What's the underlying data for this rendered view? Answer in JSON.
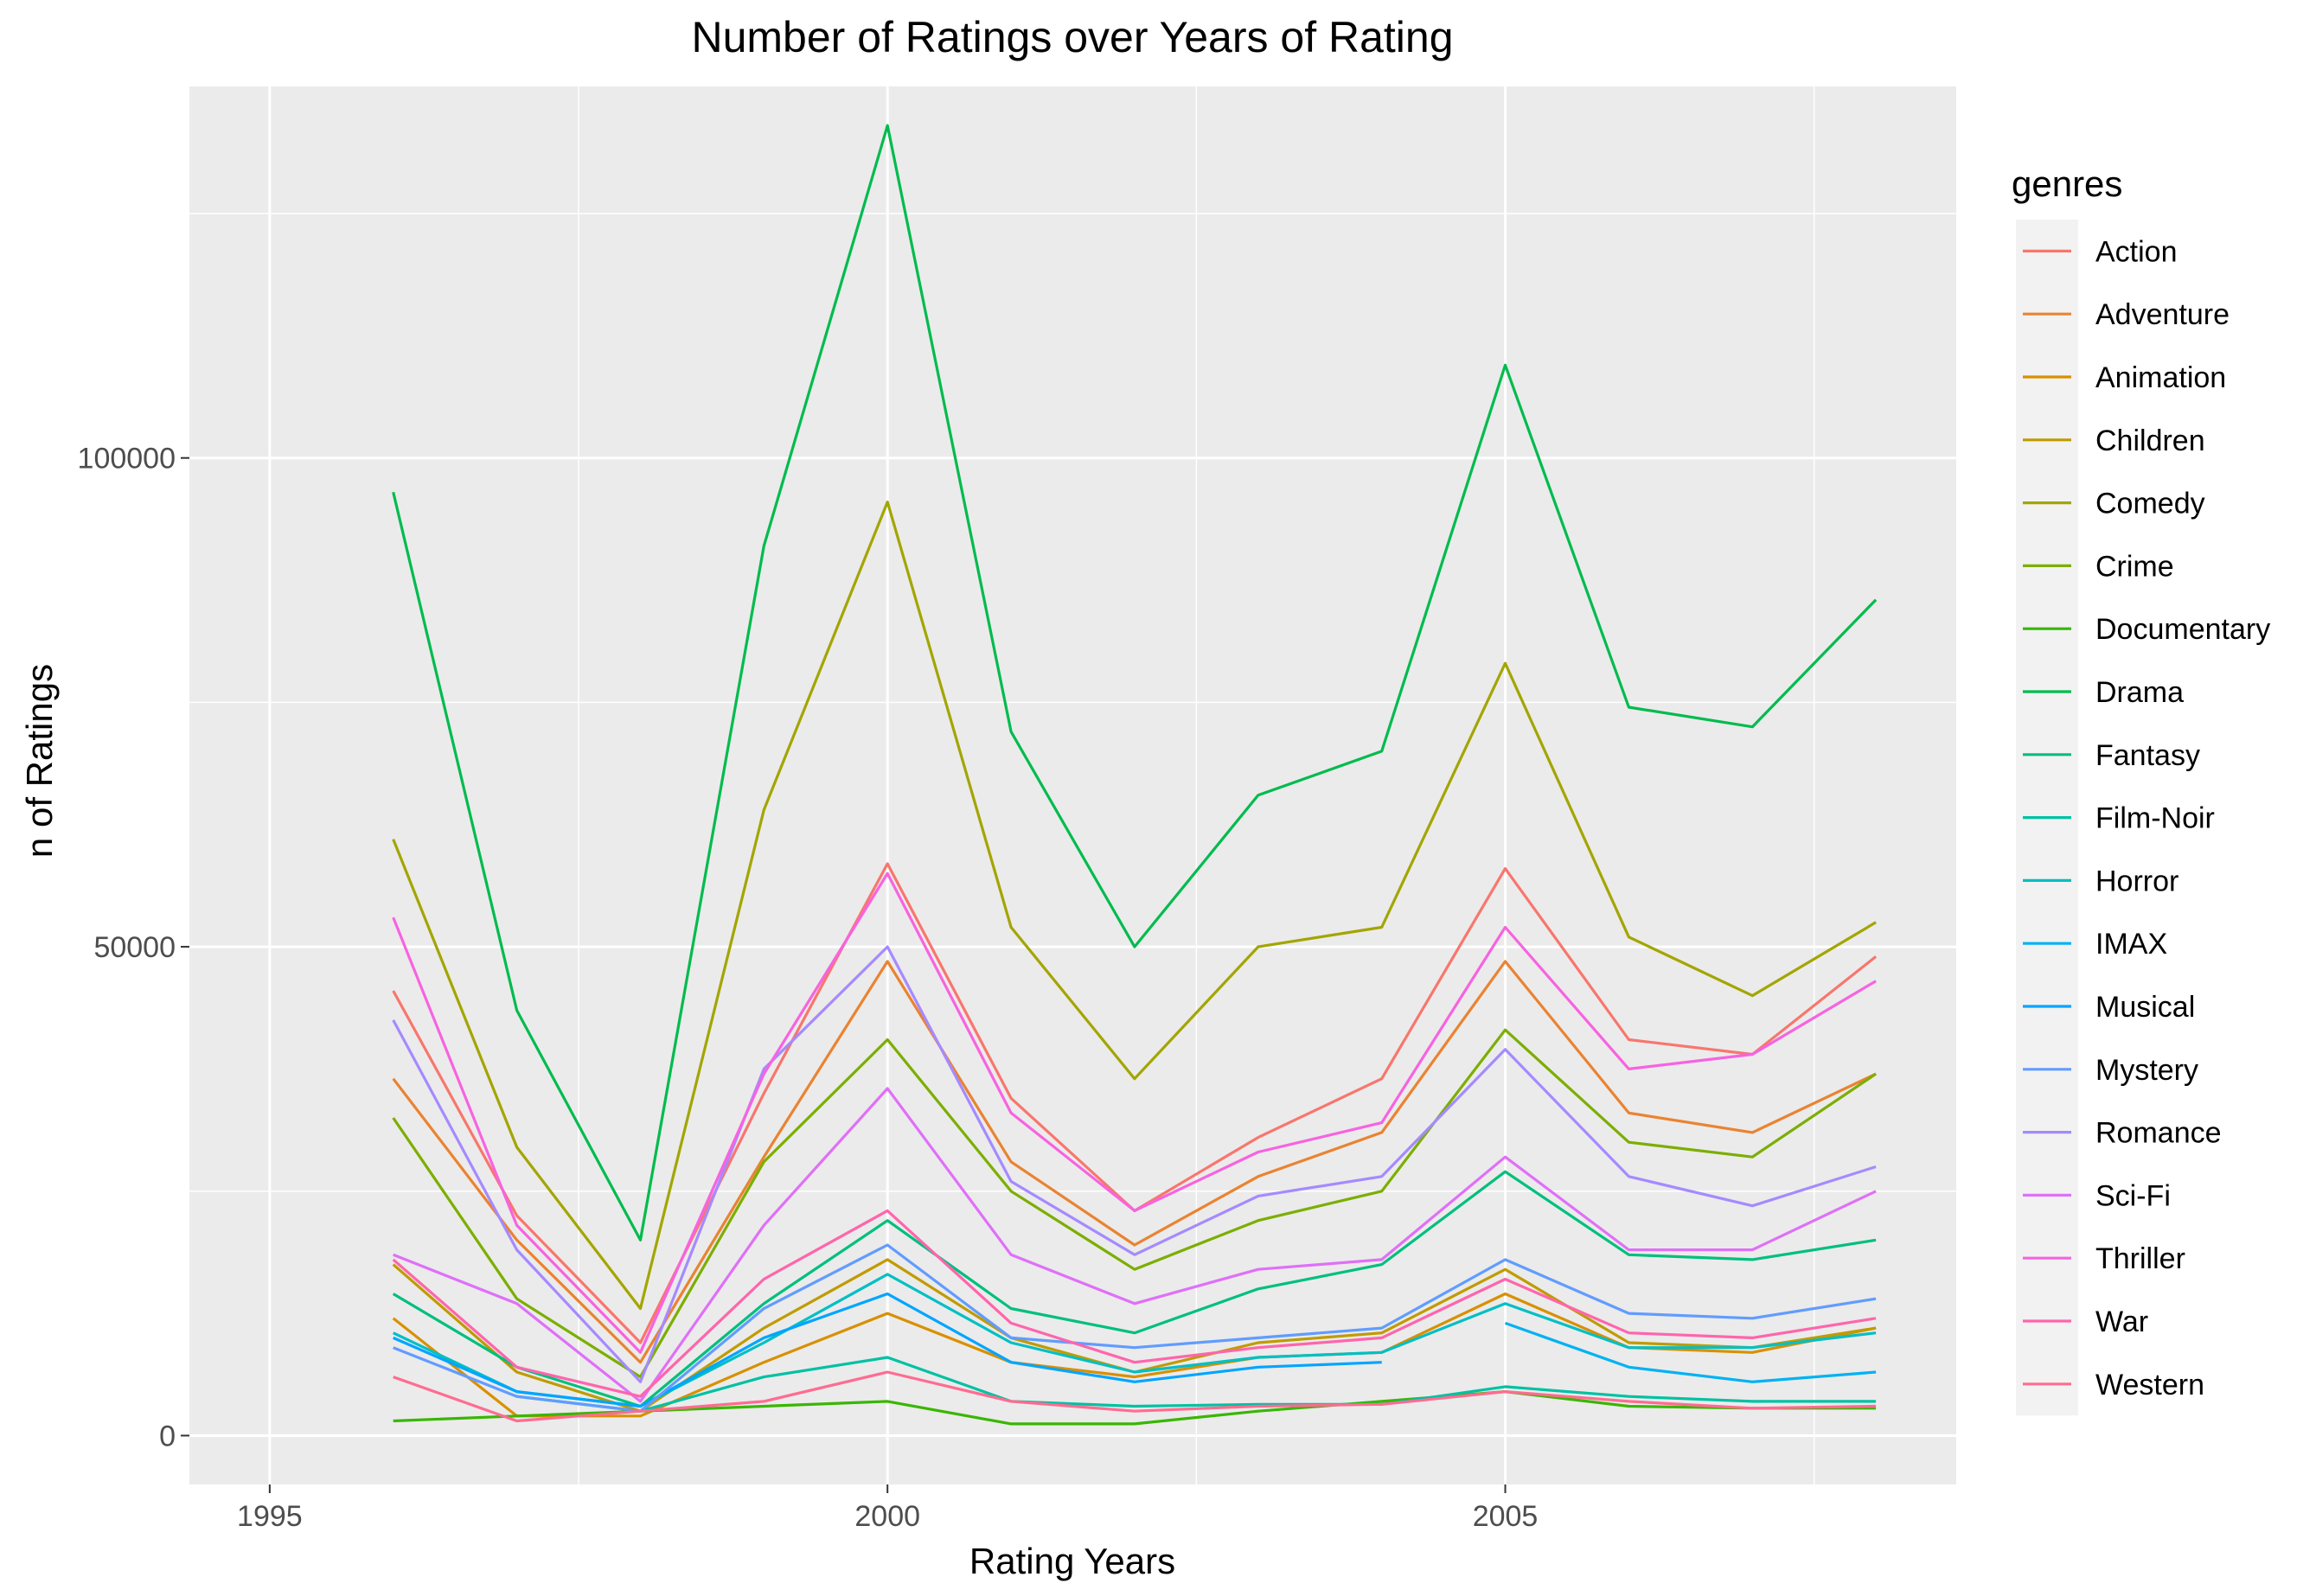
{
  "chart_data": {
    "type": "line",
    "title": "Number of Ratings over Years of Rating",
    "xlabel": "Rating Years",
    "ylabel": "n of Ratings",
    "xlim": [
      1994.35,
      2008.65
    ],
    "ylim": [
      -5000,
      138000
    ],
    "x_ticks": [
      1995,
      2000,
      2005
    ],
    "x_tick_labels": [
      "1995",
      "2000",
      "2005"
    ],
    "x_minor_ticks": [
      1997.5,
      2002.5,
      2007.5
    ],
    "y_ticks": [
      0,
      50000,
      100000
    ],
    "y_tick_labels": [
      "0",
      "50000",
      "100000"
    ],
    "y_minor_ticks": [
      25000,
      75000,
      125000
    ],
    "grid": true,
    "panel_background": "#ebebeb",
    "legend": {
      "title": "genres",
      "position": "right"
    },
    "x": [
      1996,
      1997,
      1998,
      1999,
      2000,
      2001,
      2002,
      2003,
      2004,
      2005,
      2006,
      2007,
      2008
    ],
    "series": [
      {
        "name": "Action",
        "color": "#F8766D",
        "values": [
          45500,
          22500,
          9500,
          35000,
          58500,
          34500,
          23000,
          30500,
          36500,
          58000,
          40500,
          39000,
          49000
        ]
      },
      {
        "name": "Adventure",
        "color": "#EA8331",
        "values": [
          36500,
          20000,
          7500,
          28500,
          48500,
          28000,
          19500,
          26500,
          31000,
          48500,
          33000,
          31000,
          37000
        ]
      },
      {
        "name": "Animation",
        "color": "#D89000",
        "values": [
          12000,
          2000,
          2000,
          7500,
          12500,
          7500,
          6000,
          8000,
          8500,
          14500,
          9000,
          8500,
          11000
        ]
      },
      {
        "name": "Children",
        "color": "#C09B00",
        "values": [
          17500,
          6500,
          2500,
          11000,
          18000,
          10000,
          6500,
          9500,
          10500,
          17000,
          9500,
          9000,
          11000
        ]
      },
      {
        "name": "Comedy",
        "color": "#A3A500",
        "values": [
          61000,
          29500,
          13000,
          64000,
          95500,
          52000,
          36500,
          50000,
          52000,
          79000,
          51000,
          45000,
          52500
        ]
      },
      {
        "name": "Crime",
        "color": "#7CAE00",
        "values": [
          32500,
          14000,
          6000,
          28000,
          40500,
          25000,
          17000,
          22000,
          25000,
          41500,
          30000,
          28500,
          37000
        ]
      },
      {
        "name": "Documentary",
        "color": "#39B600",
        "values": [
          1500,
          2000,
          2500,
          3000,
          3500,
          1200,
          1200,
          2500,
          3500,
          4500,
          3000,
          2800,
          2800
        ]
      },
      {
        "name": "Drama",
        "color": "#00BB4E",
        "values": [
          96500,
          43500,
          20000,
          91000,
          134000,
          72000,
          50000,
          65500,
          70000,
          109500,
          74500,
          72500,
          85500
        ]
      },
      {
        "name": "Fantasy",
        "color": "#00BF7D",
        "values": [
          14500,
          7000,
          3000,
          13500,
          22000,
          13000,
          10500,
          15000,
          17500,
          27000,
          18500,
          18000,
          20000
        ]
      },
      {
        "name": "Film-Noir",
        "color": "#00C1A3",
        "values": [
          null,
          4000,
          2500,
          6000,
          8000,
          3500,
          3000,
          3200,
          3200,
          5000,
          4000,
          3500,
          3500
        ]
      },
      {
        "name": "Horror",
        "color": "#00BFC4",
        "values": [
          10500,
          4500,
          3000,
          9500,
          16500,
          9500,
          6500,
          8000,
          8500,
          13500,
          9000,
          9000,
          10500
        ]
      },
      {
        "name": "IMAX",
        "color": "#00B2F3",
        "values": [
          null,
          null,
          null,
          null,
          null,
          null,
          null,
          null,
          null,
          11500,
          7000,
          5500,
          6500
        ]
      },
      {
        "name": "Musical",
        "color": "#00A5FF",
        "values": [
          10000,
          4500,
          3000,
          10000,
          14500,
          7500,
          5500,
          7000,
          7500,
          null,
          null,
          null,
          null
        ]
      },
      {
        "name": "Mystery",
        "color": "#619CFF",
        "values": [
          9000,
          4000,
          2500,
          13000,
          19500,
          10000,
          9000,
          10000,
          11000,
          18000,
          12500,
          12000,
          14000
        ]
      },
      {
        "name": "Romance",
        "color": "#A58AFF",
        "values": [
          42500,
          19000,
          5500,
          37500,
          50000,
          26000,
          18500,
          24500,
          26500,
          39500,
          26500,
          23500,
          27500
        ]
      },
      {
        "name": "Sci-Fi",
        "color": "#DF70F8",
        "values": [
          18500,
          13500,
          3500,
          21500,
          35500,
          18500,
          13500,
          17000,
          18000,
          28500,
          19000,
          19000,
          25000
        ]
      },
      {
        "name": "Thriller",
        "color": "#F763E0",
        "values": [
          53000,
          21500,
          8500,
          37000,
          57500,
          33000,
          23000,
          29000,
          32000,
          52000,
          37500,
          39000,
          46500
        ]
      },
      {
        "name": "War",
        "color": "#FF65AC",
        "values": [
          18000,
          7000,
          4000,
          16000,
          23000,
          11500,
          7500,
          9000,
          10000,
          16000,
          10500,
          10000,
          12000
        ]
      },
      {
        "name": "Western",
        "color": "#FF6C91",
        "values": [
          6000,
          1500,
          2500,
          3500,
          6500,
          3500,
          2500,
          3000,
          3200,
          4500,
          3500,
          2800,
          3000
        ]
      }
    ]
  }
}
